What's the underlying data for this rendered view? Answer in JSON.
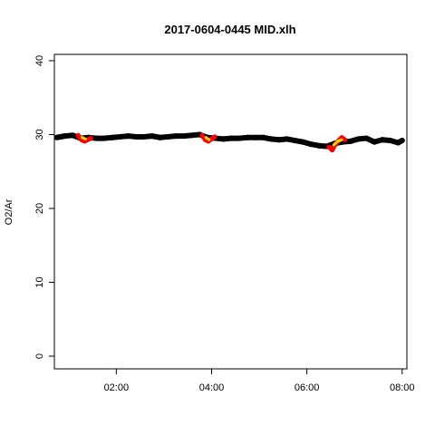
{
  "chart_data": {
    "type": "line",
    "title": "2017-0604-0445 MID.xlh",
    "xlabel": "",
    "ylabel": "O2/Ar",
    "x_unit": "time (HH:MM)",
    "xlim": [
      "00:42",
      "08:06"
    ],
    "ylim": [
      0,
      40
    ],
    "x_ticks": [
      "02:00",
      "04:00",
      "06:00",
      "08:00"
    ],
    "y_ticks": [
      0,
      10,
      20,
      30,
      40
    ],
    "grid": false,
    "legend": "none",
    "series": [
      {
        "color": "#000000",
        "points": [
          [
            "00:45",
            29.6
          ],
          [
            "00:55",
            29.8
          ],
          [
            "01:05",
            29.9
          ],
          [
            "01:15",
            29.5
          ],
          [
            "01:25",
            29.6
          ],
          [
            "01:35",
            29.5
          ],
          [
            "01:45",
            29.5
          ],
          [
            "01:55",
            29.6
          ],
          [
            "02:05",
            29.7
          ],
          [
            "02:15",
            29.8
          ],
          [
            "02:25",
            29.7
          ],
          [
            "02:35",
            29.7
          ],
          [
            "02:45",
            29.8
          ],
          [
            "02:55",
            29.6
          ],
          [
            "03:05",
            29.7
          ],
          [
            "03:15",
            29.8
          ],
          [
            "03:25",
            29.8
          ],
          [
            "03:35",
            29.9
          ],
          [
            "03:45",
            30.0
          ],
          [
            "03:55",
            29.6
          ],
          [
            "04:05",
            29.5
          ],
          [
            "04:15",
            29.4
          ],
          [
            "04:25",
            29.5
          ],
          [
            "04:35",
            29.5
          ],
          [
            "04:45",
            29.6
          ],
          [
            "04:55",
            29.6
          ],
          [
            "05:05",
            29.6
          ],
          [
            "05:15",
            29.4
          ],
          [
            "05:25",
            29.3
          ],
          [
            "05:35",
            29.4
          ],
          [
            "05:45",
            29.2
          ],
          [
            "05:55",
            29.0
          ],
          [
            "06:05",
            28.7
          ],
          [
            "06:15",
            28.5
          ],
          [
            "06:25",
            28.4
          ],
          [
            "06:35",
            28.8
          ],
          [
            "06:45",
            29.0
          ],
          [
            "06:55",
            29.1
          ],
          [
            "07:05",
            29.4
          ],
          [
            "07:15",
            29.5
          ],
          [
            "07:25",
            29.0
          ],
          [
            "07:35",
            29.3
          ],
          [
            "07:45",
            29.2
          ],
          [
            "07:55",
            28.9
          ],
          [
            "08:00",
            29.2
          ]
        ]
      },
      {
        "color": "#ff0000",
        "points": [
          [
            "01:12",
            29.9
          ],
          [
            "01:16",
            29.3
          ],
          [
            "01:20",
            29.1
          ],
          [
            "01:24",
            29.3
          ],
          [
            "01:28",
            29.5
          ],
          [
            "03:48",
            29.9
          ],
          [
            "03:52",
            29.3
          ],
          [
            "03:56",
            29.1
          ],
          [
            "04:00",
            29.4
          ],
          [
            "04:04",
            29.7
          ],
          [
            "06:28",
            28.3
          ],
          [
            "06:32",
            27.9
          ],
          [
            "06:36",
            28.7
          ],
          [
            "06:40",
            29.2
          ],
          [
            "06:44",
            29.6
          ],
          [
            "06:48",
            29.3
          ]
        ]
      },
      {
        "color": "#ffd700",
        "points": [
          [
            "01:17",
            29.6
          ],
          [
            "01:21",
            29.4
          ],
          [
            "03:53",
            29.6
          ],
          [
            "03:57",
            29.3
          ],
          [
            "06:34",
            28.6
          ],
          [
            "06:39",
            29.1
          ],
          [
            "06:44",
            29.3
          ]
        ]
      }
    ]
  }
}
